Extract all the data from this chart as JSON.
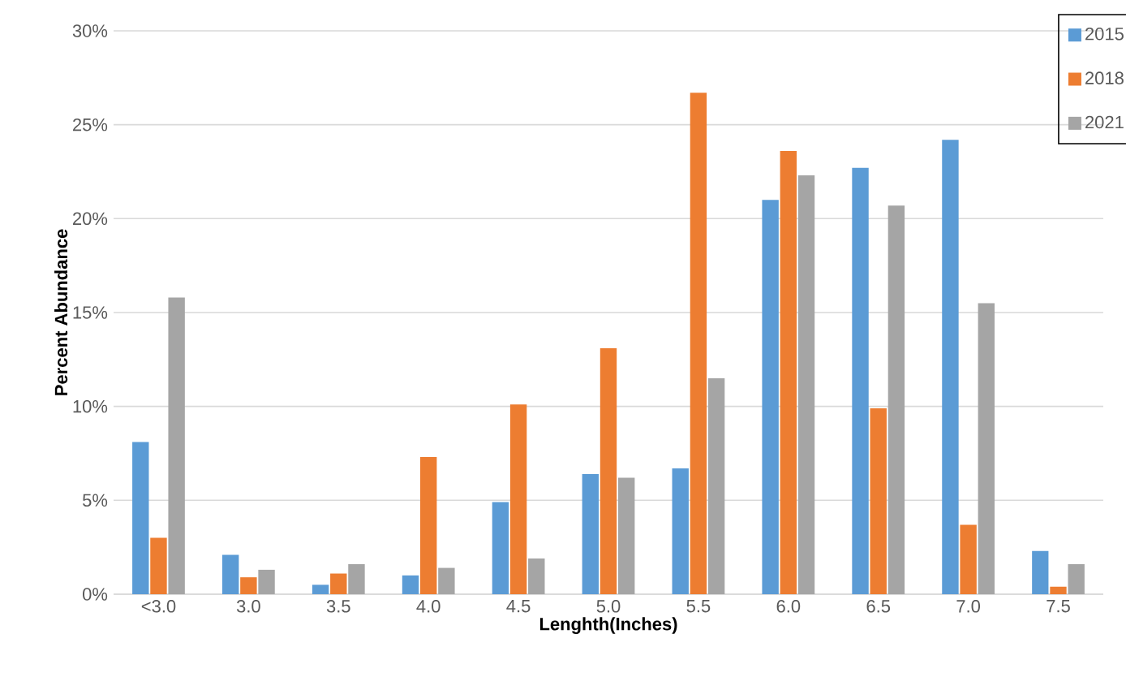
{
  "chart_data": {
    "type": "bar",
    "xlabel": "Lenghth(Inches)",
    "ylabel": "Percent Abundance",
    "categories": [
      "<3.0",
      "3.0",
      "3.5",
      "4.0",
      "4.5",
      "5.0",
      "5.5",
      "6.0",
      "6.5",
      "7.0",
      "7.5"
    ],
    "series": [
      {
        "name": "2015",
        "color": "#5b9bd5",
        "values": [
          8.1,
          2.1,
          0.5,
          1.0,
          4.9,
          6.4,
          6.7,
          21.0,
          22.7,
          24.2,
          2.3
        ]
      },
      {
        "name": "2018",
        "color": "#ed7d31",
        "values": [
          3.0,
          0.9,
          1.1,
          7.3,
          10.1,
          13.1,
          26.7,
          23.6,
          9.9,
          3.7,
          0.4
        ]
      },
      {
        "name": "2021",
        "color": "#a5a5a5",
        "values": [
          15.8,
          1.3,
          1.6,
          1.4,
          1.9,
          6.2,
          11.5,
          22.3,
          20.7,
          15.5,
          1.6
        ]
      }
    ],
    "ylim": [
      0,
      30
    ],
    "yticks": [
      {
        "value": 0,
        "label": "0%"
      },
      {
        "value": 5,
        "label": "5%"
      },
      {
        "value": 10,
        "label": "10%"
      },
      {
        "value": 15,
        "label": "15%"
      },
      {
        "value": 20,
        "label": "20%"
      },
      {
        "value": 25,
        "label": "25%"
      },
      {
        "value": 30,
        "label": "30%"
      }
    ],
    "grid": "y",
    "legend": "top right"
  }
}
